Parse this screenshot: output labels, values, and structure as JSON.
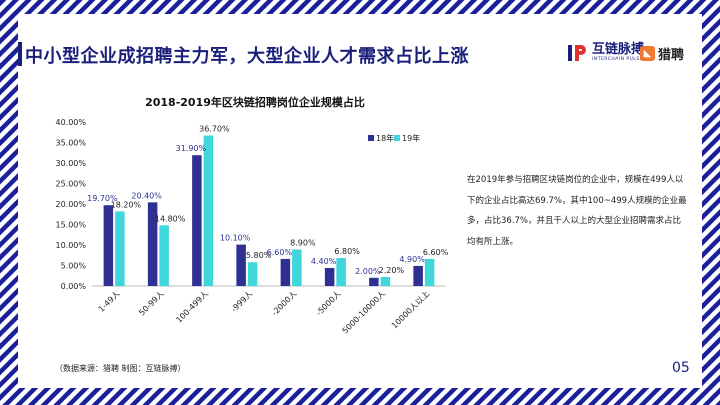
{
  "slide": {
    "title": "中小型企业成招聘主力军，大型企业人才需求占比上涨",
    "logo_brand_cn": "互链脉搏",
    "logo_brand_en": "INTERCHAIN PULSE",
    "logo_partner": "猎聘",
    "description": "在2019年参与招聘区块链岗位的企业中，规模在499人以下的企业占比高达69.7%，其中100~499人规模的企业最多，占比36.7%，并且千人以上的大型企业招聘需求占比均有所上涨。",
    "source": "（数据来源：猎聘   制图：互链脉搏）",
    "page_number": "05"
  },
  "colors": {
    "series_2018": "#2e3192",
    "series_2019": "#3fd6dc",
    "title": "#1a1f7a",
    "stripe": "#1a1f9a",
    "label_2018": "#2e3192"
  },
  "chart_data": {
    "type": "bar",
    "title": "2018-2019年区块链招聘岗位企业规模占比",
    "categories": [
      "1-49人",
      "50-99人",
      "100-499人",
      "-999人",
      "-2000人",
      "-5000人",
      "5000-10000人",
      "10000人以上"
    ],
    "series": [
      {
        "name": "18年",
        "values": [
          19.7,
          20.4,
          31.9,
          10.1,
          6.6,
          4.4,
          2.0,
          4.9
        ],
        "labels": [
          "19.70%",
          "20.40%",
          "31.90%",
          "10.10%",
          "6.60%",
          "4.40%",
          "2.00%",
          "4.90%"
        ]
      },
      {
        "name": "19年",
        "values": [
          18.2,
          14.8,
          36.7,
          5.8,
          8.9,
          6.8,
          2.2,
          6.6
        ],
        "labels": [
          "18.20%",
          "14.80%",
          "36.70%",
          "5.80%",
          "8.90%",
          "6.80%",
          "2.20%",
          "6.60%"
        ]
      }
    ],
    "yticks": [
      "0.00%",
      "5.00%",
      "10.00%",
      "15.00%",
      "20.00%",
      "25.00%",
      "30.00%",
      "35.00%",
      "40.00%"
    ],
    "ylim": [
      0,
      40
    ],
    "grid": false,
    "legend_position": "top-right"
  }
}
